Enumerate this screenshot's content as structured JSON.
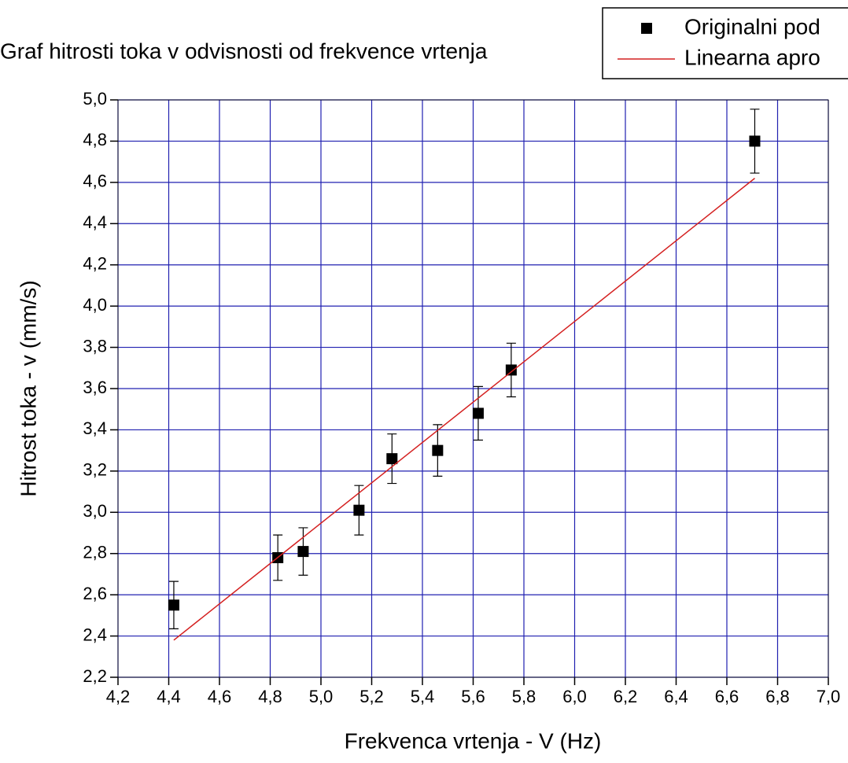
{
  "chart_data": {
    "type": "scatter",
    "title": "Graf hitrosti toka v odvisnosti od frekvence vrtenja",
    "xlabel": "Frekvenca vrtenja - V (Hz)",
    "ylabel": "Hitrost toka - v (mm/s)",
    "xlim": [
      4.2,
      7.0
    ],
    "ylim": [
      2.2,
      5.0
    ],
    "xticks": [
      {
        "value": 4.2,
        "label": "4,2"
      },
      {
        "value": 4.4,
        "label": "4,4"
      },
      {
        "value": 4.6,
        "label": "4,6"
      },
      {
        "value": 4.8,
        "label": "4,8"
      },
      {
        "value": 5.0,
        "label": "5,0"
      },
      {
        "value": 5.2,
        "label": "5,2"
      },
      {
        "value": 5.4,
        "label": "5,4"
      },
      {
        "value": 5.6,
        "label": "5,6"
      },
      {
        "value": 5.8,
        "label": "5,8"
      },
      {
        "value": 6.0,
        "label": "6,0"
      },
      {
        "value": 6.2,
        "label": "6,2"
      },
      {
        "value": 6.4,
        "label": "6,4"
      },
      {
        "value": 6.6,
        "label": "6,6"
      },
      {
        "value": 6.8,
        "label": "6,8"
      },
      {
        "value": 7.0,
        "label": "7,0"
      }
    ],
    "yticks": [
      {
        "value": 2.2,
        "label": "2,2"
      },
      {
        "value": 2.4,
        "label": "2,4"
      },
      {
        "value": 2.6,
        "label": "2,6"
      },
      {
        "value": 2.8,
        "label": "2,8"
      },
      {
        "value": 3.0,
        "label": "3,0"
      },
      {
        "value": 3.2,
        "label": "3,2"
      },
      {
        "value": 3.4,
        "label": "3,4"
      },
      {
        "value": 3.6,
        "label": "3,6"
      },
      {
        "value": 3.8,
        "label": "3,8"
      },
      {
        "value": 4.0,
        "label": "4,0"
      },
      {
        "value": 4.2,
        "label": "4,2"
      },
      {
        "value": 4.4,
        "label": "4,4"
      },
      {
        "value": 4.6,
        "label": "4,6"
      },
      {
        "value": 4.8,
        "label": "4,8"
      },
      {
        "value": 5.0,
        "label": "5,0"
      }
    ],
    "grid": true,
    "grid_color": "#2020b0",
    "legend": "upper right",
    "series": [
      {
        "name": "Originalni pod",
        "type": "scatter",
        "color": "#000000",
        "x": [
          4.42,
          4.83,
          4.93,
          5.15,
          5.28,
          5.46,
          5.62,
          5.75,
          6.71
        ],
        "values": [
          2.55,
          2.78,
          2.81,
          3.01,
          3.26,
          3.3,
          3.48,
          3.69,
          4.8
        ],
        "errors": [
          0.115,
          0.11,
          0.115,
          0.12,
          0.12,
          0.125,
          0.13,
          0.13,
          0.155
        ]
      },
      {
        "name": "Linearna apro",
        "type": "line",
        "color": "#d42020",
        "x": [
          4.42,
          6.71
        ],
        "values": [
          2.38,
          4.62
        ]
      }
    ]
  }
}
